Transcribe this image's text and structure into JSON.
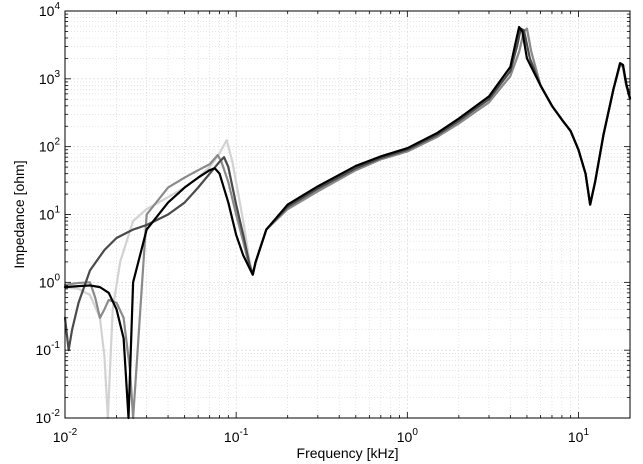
{
  "chart_data": {
    "type": "line",
    "title": "",
    "xlabel": "Frequency [kHz]",
    "ylabel": "Impedance [ohm]",
    "x_scale": "log",
    "y_scale": "log",
    "xlim": [
      0.01,
      20
    ],
    "ylim": [
      0.01,
      10000
    ],
    "grid": true,
    "minor_grid": true,
    "legend": "none",
    "x_ticks": [
      {
        "value": 0.01,
        "base": "10",
        "exp": "-2"
      },
      {
        "value": 0.1,
        "base": "10",
        "exp": "-1"
      },
      {
        "value": 1,
        "base": "10",
        "exp": "0"
      },
      {
        "value": 10,
        "base": "10",
        "exp": "1"
      }
    ],
    "y_ticks": [
      {
        "value": 0.01,
        "base": "10",
        "exp": "-2"
      },
      {
        "value": 0.1,
        "base": "10",
        "exp": "-1"
      },
      {
        "value": 1,
        "base": "10",
        "exp": "0"
      },
      {
        "value": 10,
        "base": "10",
        "exp": "1"
      },
      {
        "value": 100,
        "base": "10",
        "exp": "2"
      },
      {
        "value": 1000,
        "base": "10",
        "exp": "3"
      },
      {
        "value": 10000,
        "base": "10",
        "exp": "4"
      }
    ],
    "series": [
      {
        "color": "#d2d2d2",
        "x": [
          0.01,
          0.012,
          0.014,
          0.016,
          0.017,
          0.0178,
          0.019,
          0.021,
          0.025,
          0.03,
          0.04,
          0.05,
          0.06,
          0.07,
          0.08,
          0.088,
          0.095,
          0.11,
          0.12,
          0.125,
          0.13,
          0.15,
          0.2,
          0.3,
          0.5,
          0.7,
          1,
          1.5,
          2,
          3,
          4,
          4.5,
          4.8,
          5.0,
          5.3,
          6,
          7,
          8,
          9,
          10,
          11,
          11.7,
          12.5,
          14,
          16,
          17.5,
          18.2,
          19,
          20
        ],
        "y": [
          0.85,
          0.8,
          0.65,
          0.3,
          0.08,
          0.01,
          0.4,
          2,
          8,
          12,
          18,
          25,
          35,
          50,
          80,
          125,
          60,
          8,
          2,
          1.3,
          2,
          6,
          12,
          22,
          45,
          65,
          85,
          140,
          220,
          450,
          1100,
          2500,
          5000,
          5500,
          2500,
          800,
          400,
          250,
          170,
          90,
          40,
          14,
          30,
          150,
          700,
          1600,
          1500,
          800,
          500
        ]
      },
      {
        "color": "#8a8a8a",
        "x": [
          0.01,
          0.012,
          0.014,
          0.015,
          0.016,
          0.017,
          0.018,
          0.02,
          0.022,
          0.024,
          0.025,
          0.03,
          0.04,
          0.05,
          0.06,
          0.07,
          0.078,
          0.082,
          0.09,
          0.1,
          0.11,
          0.12,
          0.125,
          0.13,
          0.15,
          0.2,
          0.3,
          0.5,
          0.7,
          1,
          1.5,
          2,
          3,
          4,
          4.5,
          4.8,
          5.0,
          5.3,
          6,
          7,
          8,
          9,
          10,
          11,
          11.7,
          12.5,
          14,
          16,
          17.5,
          18.2,
          19,
          20
        ],
        "y": [
          0.92,
          0.98,
          1.0,
          0.6,
          0.3,
          0.4,
          0.55,
          0.5,
          0.3,
          0.05,
          0.01,
          10,
          25,
          35,
          45,
          55,
          75,
          60,
          30,
          10,
          4,
          1.6,
          1.3,
          2,
          6,
          12,
          22,
          45,
          65,
          85,
          140,
          220,
          450,
          1100,
          2500,
          5000,
          5500,
          2500,
          800,
          400,
          250,
          170,
          90,
          40,
          14,
          30,
          150,
          700,
          1600,
          1500,
          800,
          500
        ]
      },
      {
        "color": "#4a4a4a",
        "x": [
          0.01,
          0.0105,
          0.011,
          0.012,
          0.014,
          0.017,
          0.02,
          0.025,
          0.03,
          0.04,
          0.05,
          0.06,
          0.07,
          0.08,
          0.085,
          0.09,
          0.1,
          0.11,
          0.12,
          0.125,
          0.13,
          0.15,
          0.2,
          0.3,
          0.5,
          0.7,
          1,
          1.5,
          2,
          3,
          4,
          4.4,
          4.6,
          4.8,
          5.2,
          6,
          7,
          8,
          9,
          10,
          11,
          11.7,
          12.5,
          14,
          16,
          17.5,
          18.2,
          19,
          20
        ],
        "y": [
          0.3,
          0.1,
          0.2,
          0.5,
          1.5,
          3,
          4.5,
          6,
          7,
          10,
          15,
          25,
          40,
          60,
          70,
          50,
          14,
          5,
          1.8,
          1.3,
          2,
          6,
          13,
          24,
          48,
          68,
          90,
          150,
          240,
          500,
          1300,
          3200,
          5500,
          5200,
          2000,
          800,
          400,
          250,
          170,
          90,
          40,
          14,
          30,
          150,
          700,
          1700,
          1600,
          850,
          520
        ]
      },
      {
        "color": "#000000",
        "x": [
          0.01,
          0.012,
          0.014,
          0.016,
          0.018,
          0.02,
          0.022,
          0.0235,
          0.025,
          0.03,
          0.04,
          0.05,
          0.06,
          0.07,
          0.075,
          0.08,
          0.09,
          0.1,
          0.11,
          0.12,
          0.125,
          0.13,
          0.15,
          0.2,
          0.3,
          0.5,
          0.7,
          1,
          1.5,
          2,
          3,
          4,
          4.3,
          4.5,
          4.7,
          5.0,
          6,
          7,
          8,
          9,
          10,
          11,
          11.7,
          12.5,
          14,
          16,
          17.5,
          18.2,
          19,
          20
        ],
        "y": [
          0.85,
          0.88,
          0.9,
          0.85,
          0.7,
          0.4,
          0.15,
          0.01,
          1,
          6,
          15,
          25,
          35,
          45,
          48,
          40,
          15,
          5,
          2.5,
          1.6,
          1.3,
          2,
          6,
          14,
          26,
          52,
          72,
          95,
          160,
          260,
          550,
          1500,
          3500,
          5800,
          5000,
          2000,
          800,
          400,
          250,
          170,
          90,
          40,
          14,
          30,
          150,
          700,
          1700,
          1600,
          850,
          520
        ]
      }
    ]
  }
}
